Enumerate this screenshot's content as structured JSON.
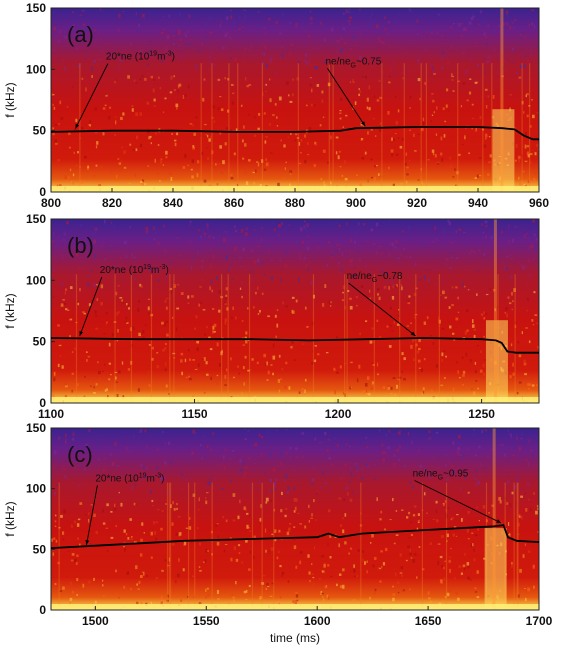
{
  "colors": {
    "low": "#3a1f8a",
    "mid": "#c41111",
    "high": "#ffe95a",
    "trace": "#000000"
  },
  "chart_data": [
    {
      "type": "heatmap",
      "panel_label": "(a)",
      "xlim": [
        800,
        960
      ],
      "ylim": [
        0,
        150
      ],
      "xticks": [
        800,
        820,
        840,
        860,
        880,
        900,
        920,
        940,
        960
      ],
      "yticks": [
        0,
        50,
        100,
        150
      ],
      "ylabel": "f (kHz)",
      "xlabel": "",
      "trace": {
        "x": [
          800,
          820,
          840,
          860,
          880,
          895,
          900,
          920,
          940,
          948,
          952,
          955,
          958,
          960
        ],
        "y": [
          49,
          50,
          50,
          49,
          49,
          50,
          52,
          53,
          53,
          52,
          51,
          46,
          43,
          43
        ]
      },
      "annotations": [
        {
          "pre": "20*ne (10",
          "sup": "19",
          "mid": "m",
          "sup2": "-3",
          "post": ")",
          "tx": 818,
          "ty": 108,
          "ax": 808,
          "ay": 50
        },
        {
          "pre": "ne/ne",
          "sub": "G",
          "post": "~0.75",
          "tx": 890,
          "ty": 104,
          "ax": 903,
          "ay": 52
        }
      ]
    },
    {
      "type": "heatmap",
      "panel_label": "(b)",
      "xlim": [
        1100,
        1270
      ],
      "ylim": [
        0,
        150
      ],
      "xticks": [
        1100,
        1150,
        1200,
        1250
      ],
      "yticks": [
        0,
        50,
        100,
        150
      ],
      "ylabel": "f (kHz)",
      "xlabel": "",
      "trace": {
        "x": [
          1100,
          1130,
          1150,
          1170,
          1190,
          1210,
          1230,
          1250,
          1255,
          1257,
          1259,
          1262,
          1270
        ],
        "y": [
          53,
          52,
          52,
          52,
          51,
          52,
          53,
          52,
          51,
          49,
          42,
          41,
          41
        ]
      },
      "annotations": [
        {
          "pre": "20*ne (10",
          "sup": "19",
          "mid": "m",
          "sup2": "-3",
          "post": ")",
          "tx": 1117,
          "ty": 106,
          "ax": 1110,
          "ay": 53
        },
        {
          "pre": "ne/ne",
          "sub": "G",
          "post": "~0.78",
          "tx": 1203,
          "ty": 101,
          "ax": 1227,
          "ay": 53
        }
      ]
    },
    {
      "type": "heatmap",
      "panel_label": "(c)",
      "xlim": [
        1480,
        1700
      ],
      "ylim": [
        0,
        150
      ],
      "xticks": [
        1500,
        1550,
        1600,
        1650,
        1700
      ],
      "yticks": [
        0,
        50,
        100,
        150
      ],
      "ylabel": "f (kHz)",
      "xlabel": "time (ms)",
      "trace": {
        "x": [
          1480,
          1500,
          1520,
          1540,
          1560,
          1580,
          1600,
          1605,
          1610,
          1620,
          1640,
          1660,
          1680,
          1684,
          1686,
          1690,
          1700
        ],
        "y": [
          51,
          53,
          55,
          57,
          58,
          59,
          60,
          63,
          60,
          63,
          65,
          67,
          69,
          70,
          60,
          57,
          56
        ]
      },
      "annotations": [
        {
          "pre": "20*ne (10",
          "sup": "19",
          "mid": "m",
          "sup2": "-3",
          "post": ")",
          "tx": 1500,
          "ty": 106,
          "ax": 1496,
          "ay": 52
        },
        {
          "pre": "ne/ne",
          "sub": "G",
          "post": "~0.95",
          "tx": 1643,
          "ty": 110,
          "ax": 1683,
          "ay": 70
        }
      ]
    }
  ]
}
